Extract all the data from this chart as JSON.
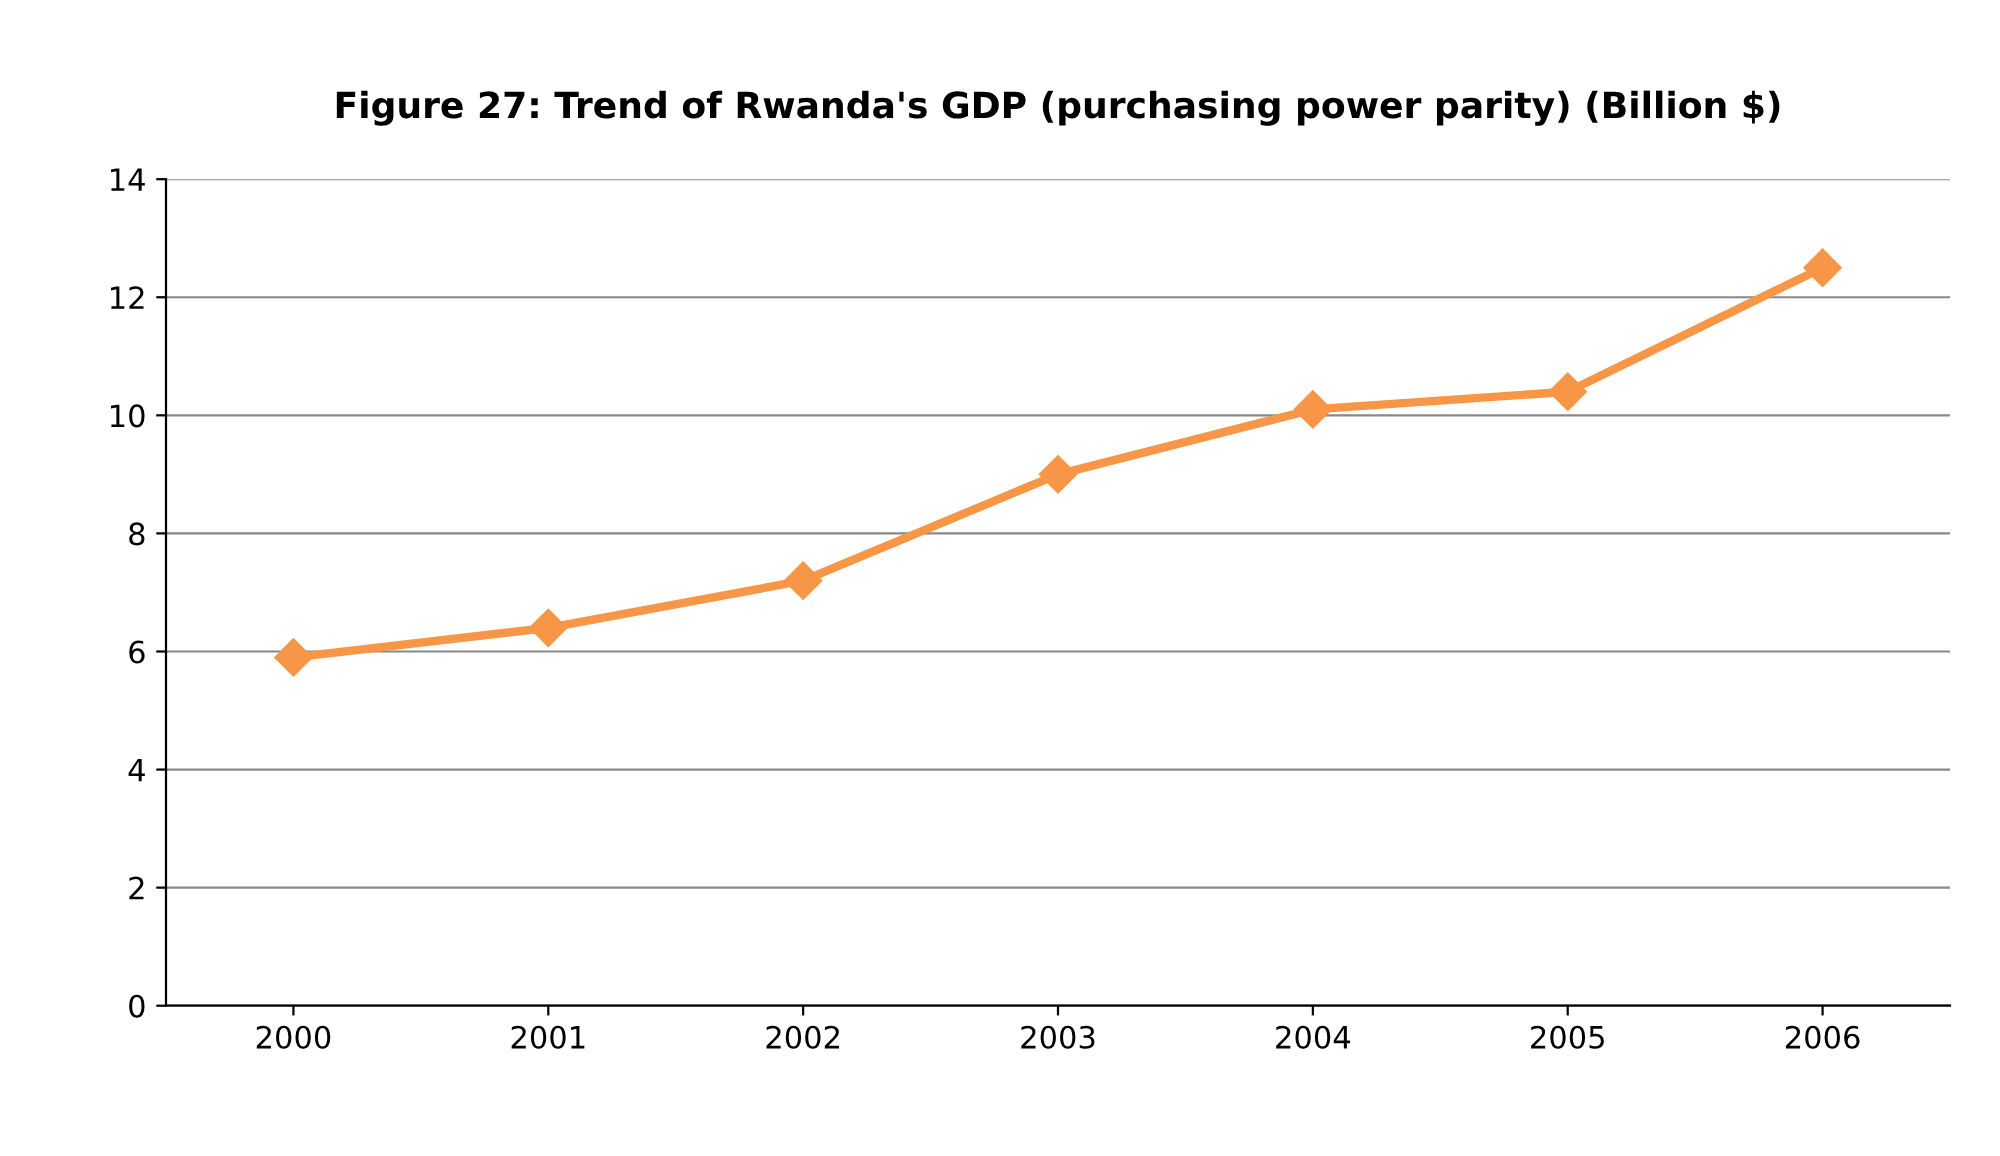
{
  "chart_data": {
    "type": "line",
    "title": "Figure 27: Trend of Rwanda's GDP (purchasing power parity) (Billion $)",
    "categories": [
      "2000",
      "2001",
      "2002",
      "2003",
      "2004",
      "2005",
      "2006"
    ],
    "series": [
      {
        "color": "#f79646",
        "values": [
          5.9,
          6.4,
          7.2,
          9.0,
          10.1,
          10.4,
          12.5
        ]
      }
    ],
    "ylim": [
      0,
      14
    ],
    "yticks": [
      0,
      2,
      4,
      6,
      8,
      10,
      12,
      14
    ],
    "grid": "y",
    "legend": false,
    "marker": "diamond",
    "line_style": "solid"
  }
}
